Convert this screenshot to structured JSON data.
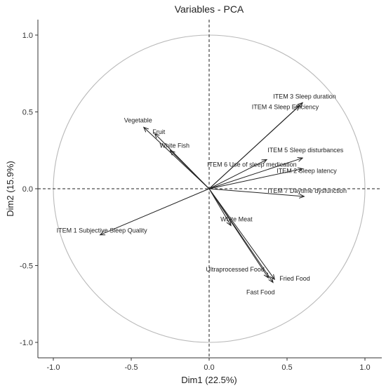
{
  "chart_data": {
    "type": "scatter",
    "title": "Variables - PCA",
    "xlabel": "Dim1 (22.5%)",
    "ylabel": "Dim2 (15.9%)",
    "xlim": [
      -1.0,
      1.0
    ],
    "ylim": [
      -1.0,
      1.0
    ],
    "xticks": [
      "-1.0",
      "-0.5",
      "0.0",
      "0.5",
      "1.0"
    ],
    "yticks": [
      "-1.0",
      "-0.5",
      "0.0",
      "0.5",
      "1.0"
    ],
    "grid": false,
    "reference_lines": "dashed lines at x=0 and y=0",
    "correlation_circle": true,
    "variables": [
      {
        "name": "ITEM 3 Sleep duration",
        "x": 0.6,
        "y": 0.56
      },
      {
        "name": "ITEM 4 Sleep Efficiency",
        "x": 0.58,
        "y": 0.54
      },
      {
        "name": "ITEM 5 Sleep disturbances",
        "x": 0.6,
        "y": 0.2
      },
      {
        "name": "ITEM 2 Sleep latency",
        "x": 0.6,
        "y": 0.13
      },
      {
        "name": "ITEM 7 Daytime dysfunction",
        "x": 0.61,
        "y": -0.05
      },
      {
        "name": "ITEM 6 Use of sleep medication",
        "x": 0.37,
        "y": 0.19
      },
      {
        "name": "Vegetable",
        "x": -0.42,
        "y": 0.4
      },
      {
        "name": "Fruit",
        "x": -0.35,
        "y": 0.36
      },
      {
        "name": "White Fish",
        "x": -0.25,
        "y": 0.25
      },
      {
        "name": "ITEM 1 Subjective Sleep Quality",
        "x": -0.7,
        "y": -0.3
      },
      {
        "name": "White Meat",
        "x": 0.14,
        "y": -0.24
      },
      {
        "name": "Ultraprocessed Food",
        "x": 0.38,
        "y": -0.58
      },
      {
        "name": "Fried Food",
        "x": 0.42,
        "y": -0.59
      },
      {
        "name": "Fast Food",
        "x": 0.41,
        "y": -0.61
      }
    ]
  }
}
